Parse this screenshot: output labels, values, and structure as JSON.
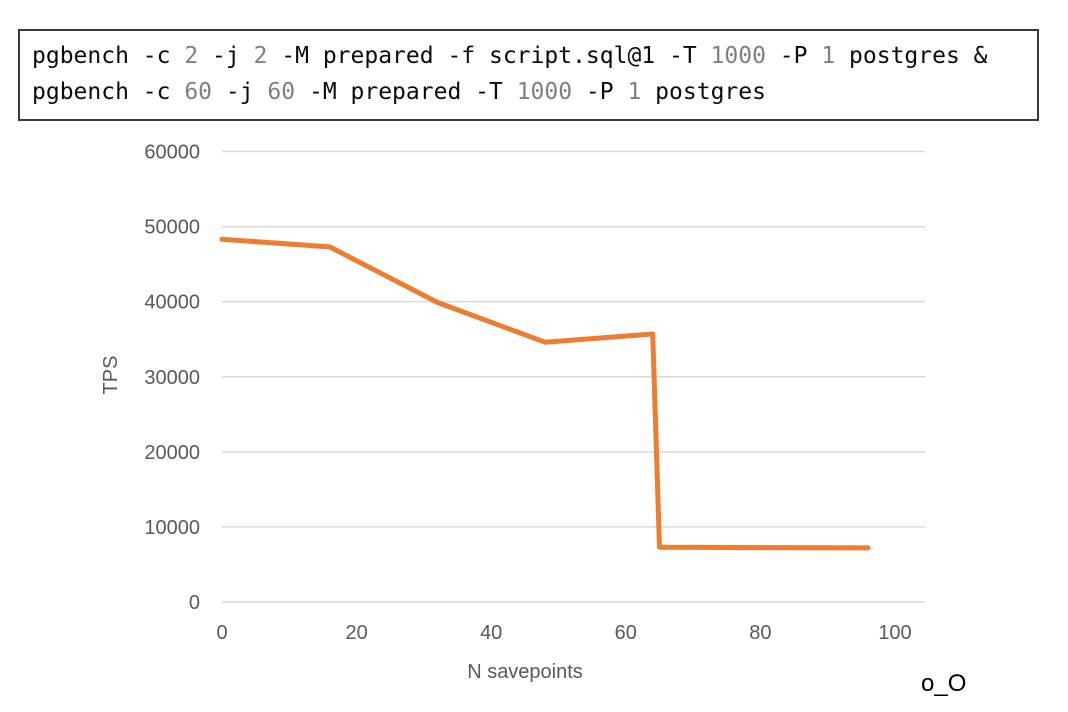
{
  "command_box": {
    "lines": [
      [
        {
          "text": "pgbench -c ",
          "muted": false
        },
        {
          "text": "2",
          "muted": true
        },
        {
          "text": " -j ",
          "muted": false
        },
        {
          "text": "2",
          "muted": true
        },
        {
          "text": " -M prepared -f script.sql@1 -T ",
          "muted": false
        },
        {
          "text": "1000",
          "muted": true
        },
        {
          "text": " -P ",
          "muted": false
        },
        {
          "text": "1",
          "muted": true
        },
        {
          "text": " postgres &",
          "muted": false
        }
      ],
      [
        {
          "text": "pgbench -c ",
          "muted": false
        },
        {
          "text": "60",
          "muted": true
        },
        {
          "text": " -j ",
          "muted": false
        },
        {
          "text": "60",
          "muted": true
        },
        {
          "text": " -M prepared -T ",
          "muted": false
        },
        {
          "text": "1000",
          "muted": true
        },
        {
          "text": " -P ",
          "muted": false
        },
        {
          "text": "1",
          "muted": true
        },
        {
          "text": " postgres",
          "muted": false
        }
      ]
    ]
  },
  "chart_data": {
    "type": "line",
    "title": "",
    "x": [
      0,
      16,
      32,
      48,
      64,
      65,
      80,
      96
    ],
    "y": [
      48300,
      47300,
      39900,
      34600,
      35700,
      7300,
      7250,
      7200
    ],
    "series": [
      {
        "name": "TPS",
        "values": [
          48300,
          47300,
          39900,
          34600,
          35700,
          7300,
          7250,
          7200
        ]
      }
    ],
    "xlabel": "N savepoints",
    "ylabel": "TPS",
    "xticks": [
      0,
      20,
      40,
      60,
      80,
      100
    ],
    "yticks": [
      0,
      10000,
      20000,
      30000,
      40000,
      50000,
      60000
    ],
    "xlim": [
      0,
      104
    ],
    "ylim": [
      0,
      60000
    ],
    "grid": true,
    "legend": false,
    "line_color": "#ED7D31"
  },
  "colors": {
    "accent_line": "#ED7D31",
    "gridline": "#D9D9D9",
    "axis_text": "#595959",
    "code_text": "#0b0b0b",
    "code_number_muted": "#808080",
    "box_border": "#3b3b3b"
  },
  "footer": {
    "emoticon": "o_O"
  }
}
